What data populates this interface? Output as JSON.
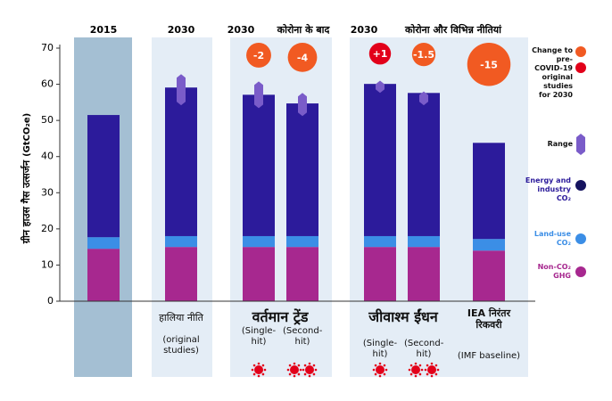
{
  "chart_data": {
    "type": "bar",
    "stacked": true,
    "ylabel": "ग्रीन हाउस गैस उत्सर्जन",
    "yunit": "(GtCO₂e)",
    "ylim": [
      0,
      70
    ],
    "yticks": [
      0,
      10,
      20,
      30,
      40,
      50,
      60,
      70
    ],
    "headers": [
      "2015",
      "2030",
      "2030",
      "कोरोना के बाद",
      "2030",
      "कोरोना और विभिन्न नीतियां"
    ],
    "group_labels": [
      "हालिया नीति",
      "वर्तमान ट्रेंड",
      "जीवाश्म ईंधन",
      "IEA निरंतर रिकवरी"
    ],
    "categories": [
      null,
      "(original studies)",
      "(Single-hit)",
      "(Second-hit)",
      "(Single-hit)",
      "(Second-hit)",
      "(IMF baseline)"
    ],
    "series": [
      {
        "name": "Non-CO₂ GHG",
        "color": "#a7288f",
        "values": [
          14.5,
          15,
          15,
          15,
          15,
          15,
          14
        ]
      },
      {
        "name": "Land-use CO₂",
        "color": "#3b8ee6",
        "values": [
          3.2,
          3,
          3,
          3,
          3,
          3,
          3.2
        ]
      },
      {
        "name": "Energy and industry CO₂",
        "color": "#2c1b9b",
        "values": [
          33.8,
          41.1,
          39.1,
          36.7,
          42.1,
          39.6,
          26.6
        ]
      }
    ],
    "range": {
      "name": "Range",
      "color": "#7a5cc9",
      "low": [
        null,
        54.2,
        53.4,
        51.2,
        57.6,
        54.2,
        null
      ],
      "high": [
        null,
        62.8,
        60.8,
        57.6,
        61,
        58,
        null
      ]
    },
    "change": {
      "name": "Change to pre-COVID-19 original studies for 2030",
      "negative_color": "#f15a22",
      "positive_color": "#e2001a",
      "values": [
        null,
        null,
        -2,
        -4,
        1,
        -1.5,
        -15
      ],
      "value_labels": [
        null,
        null,
        "-2",
        "-4",
        "+1",
        "-1.5",
        "-15"
      ]
    }
  }
}
